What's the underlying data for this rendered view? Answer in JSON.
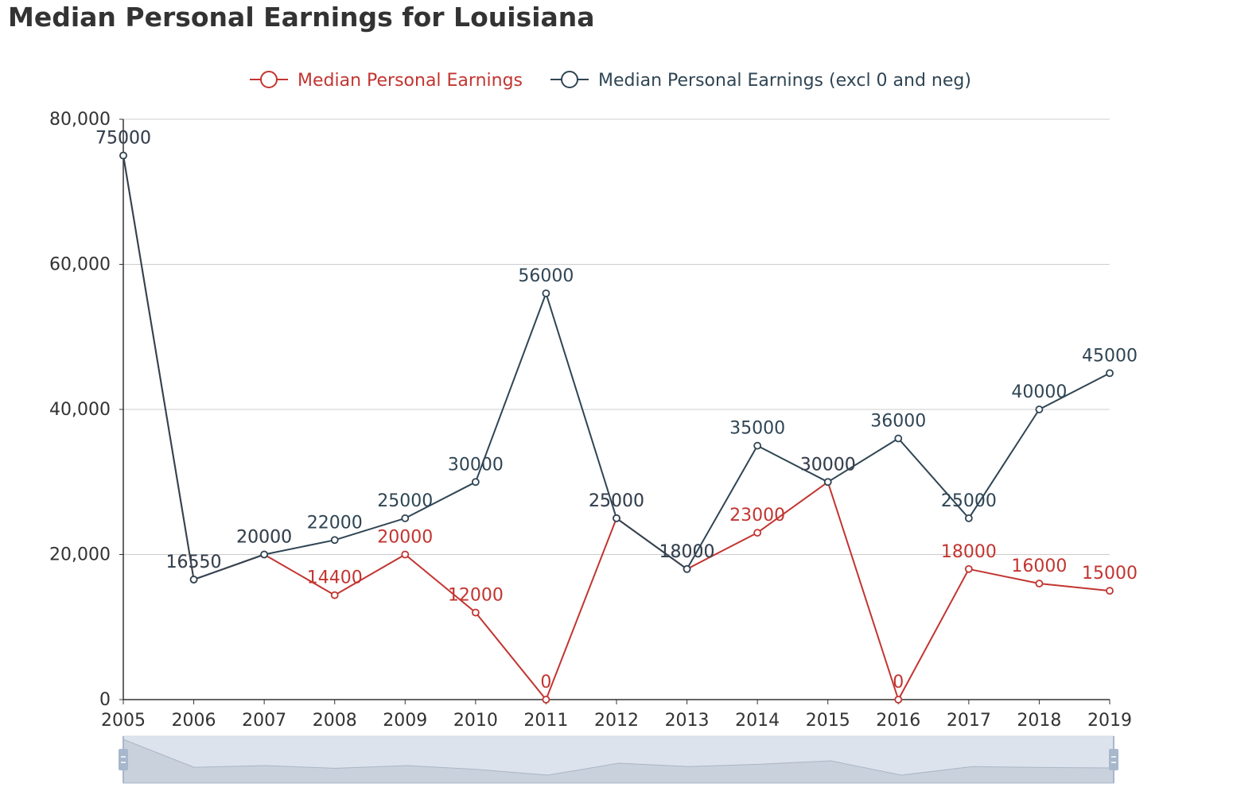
{
  "page": {
    "title": "Median Personal Earnings for Louisiana"
  },
  "colors": {
    "series_1": "#c23531",
    "series_2": "#2f4554",
    "axis": "#333333",
    "grid": "#cccccc",
    "zoom_fill": "#dde3ec",
    "zoom_handle": "#a7b7cc"
  },
  "chart_data": {
    "type": "line",
    "title": "Median Personal Earnings for Louisiana",
    "x": [
      "2005",
      "2006",
      "2007",
      "2008",
      "2009",
      "2010",
      "2011",
      "2012",
      "2013",
      "2014",
      "2015",
      "2016",
      "2017",
      "2018",
      "2019"
    ],
    "series": [
      {
        "name": "Median Personal Earnings",
        "values": [
          75000,
          16550,
          20000,
          14400,
          20000,
          12000,
          0,
          25000,
          18000,
          23000,
          30000,
          0,
          18000,
          16000,
          15000
        ]
      },
      {
        "name": "Median Personal Earnings (excl 0 and neg)",
        "values": [
          75000,
          16550,
          20000,
          22000,
          25000,
          30000,
          56000,
          25000,
          18000,
          35000,
          30000,
          36000,
          25000,
          40000,
          45000
        ]
      }
    ],
    "ylim": [
      0,
      80000
    ],
    "yticks": [
      0,
      20000,
      40000,
      60000,
      80000
    ],
    "ytick_labels": [
      "0",
      "20,000",
      "40,000",
      "60,000",
      "80,000"
    ],
    "grid": true,
    "legend_position": "top-center",
    "data_labels": true,
    "data_zoom_slider": true
  }
}
